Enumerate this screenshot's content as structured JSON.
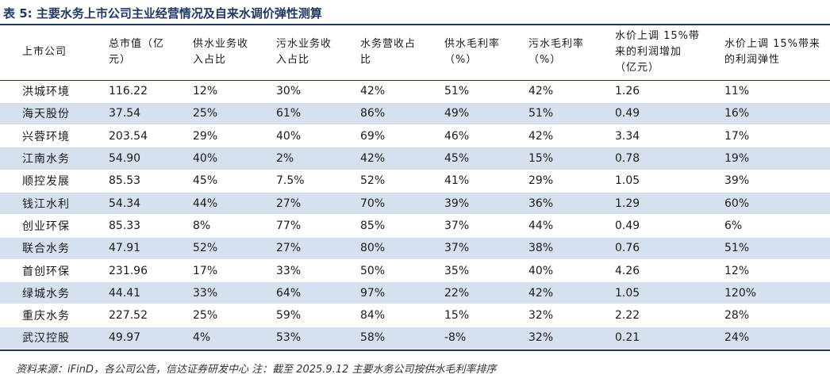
{
  "title": "表 5:  主要水务上市公司主业经营情况及自来水调价弹性测算",
  "columns": [
    [
      "上市公司"
    ],
    [
      "总市值（亿",
      "元）"
    ],
    [
      "供水业务收",
      "入占比"
    ],
    [
      "污水业务收",
      "入占比"
    ],
    [
      "水务营收占",
      "比"
    ],
    [
      "供水毛利率",
      "（%）"
    ],
    [
      "污水毛利率",
      "（%）"
    ],
    [
      "水价上调 15%带",
      "来的利润增加",
      "（亿元）"
    ],
    [
      "水价上调 15%带来",
      "的利润弹性"
    ]
  ],
  "rows": [
    [
      "洪城环境",
      "116.22",
      "12%",
      "30%",
      "42%",
      "51%",
      "42%",
      "1.26",
      "11%"
    ],
    [
      "海天股份",
      "37.54",
      "25%",
      "61%",
      "86%",
      "49%",
      "51%",
      "0.49",
      "16%"
    ],
    [
      "兴蓉环境",
      "203.54",
      "29%",
      "40%",
      "69%",
      "46%",
      "42%",
      "3.34",
      "17%"
    ],
    [
      "江南水务",
      "54.90",
      "40%",
      "2%",
      "42%",
      "45%",
      "15%",
      "0.78",
      "19%"
    ],
    [
      "顺控发展",
      "85.53",
      "45%",
      "7.5%",
      "52%",
      "41%",
      "29%",
      "1.05",
      "39%"
    ],
    [
      "钱江水利",
      "54.34",
      "44%",
      "27%",
      "70%",
      "39%",
      "36%",
      "1.29",
      "60%"
    ],
    [
      "创业环保",
      "85.33",
      "8%",
      "77%",
      "85%",
      "37%",
      "44%",
      "0.49",
      "6%"
    ],
    [
      "联合水务",
      "47.91",
      "52%",
      "27%",
      "80%",
      "37%",
      "38%",
      "0.76",
      "51%"
    ],
    [
      "首创环保",
      "231.96",
      "17%",
      "33%",
      "50%",
      "35%",
      "40%",
      "4.26",
      "12%"
    ],
    [
      "绿城水务",
      "44.41",
      "33%",
      "64%",
      "97%",
      "22%",
      "42%",
      "1.05",
      "120%"
    ],
    [
      "重庆水务",
      "227.52",
      "25%",
      "59%",
      "84%",
      "15%",
      "32%",
      "2.22",
      "28%"
    ],
    [
      "武汉控股",
      "49.97",
      "4%",
      "53%",
      "58%",
      "-8%",
      "32%",
      "0.21",
      "24%"
    ]
  ],
  "footnote": "资料来源：iFinD，各公司公告，信达证券研发中心      注：截至 2025.9.12      主要水务公司按供水毛利率排序",
  "colors": {
    "accent": "#1f3864",
    "row_shade": "#d6e1ef"
  }
}
